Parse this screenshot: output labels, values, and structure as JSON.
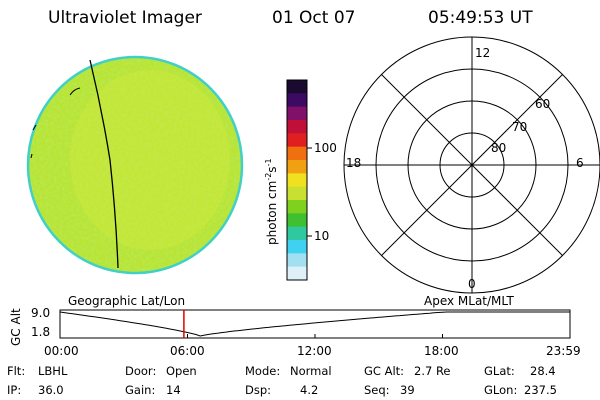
{
  "header": {
    "instrument": "Ultraviolet Imager",
    "date": "01 Oct 07",
    "time": "05:49:53 UT"
  },
  "colorbar": {
    "unit_base": "photon cm",
    "unit_exp1": "-2",
    "unit_mid": "s",
    "unit_exp2": "-1",
    "tick_100": "100",
    "tick_10": "10",
    "colors": [
      "#1a0a30",
      "#3c0a60",
      "#80106a",
      "#c0103a",
      "#e02020",
      "#f07010",
      "#f0a010",
      "#f0e020",
      "#c8e030",
      "#80d020",
      "#40c030",
      "#30c8a0",
      "#40d0f0",
      "#a0e0f0",
      "#e0f0f8"
    ]
  },
  "polar": {
    "mlt_12": "12",
    "mlt_18": "18",
    "mlt_6": "6",
    "mlt_0": "0",
    "lat_60": "60",
    "lat_70": "70",
    "lat_80": "80"
  },
  "orbit": {
    "left_label": "Geographic Lat/Lon",
    "right_label": "Apex MLat/MLT",
    "axis_title": "GC Alt",
    "y_top": "9.0",
    "y_bottom": "1.8",
    "x_ticks": [
      "00:00",
      "06:00",
      "12:00",
      "18:00",
      "23:59"
    ],
    "current_time_hours": 5.83
  },
  "status": {
    "filter_label": "Flt:",
    "filter_value": "LBHL",
    "ip_label": "IP:",
    "ip_value": "36.0",
    "door_label": "Door:",
    "door_value": "Open",
    "gain_label": "Gain:",
    "gain_value": "14",
    "mode_label": "Mode:",
    "mode_value": "Normal",
    "dsp_label": "Dsp:",
    "dsp_value": "4.2",
    "gcalt_label": "GC Alt:",
    "gcalt_value": "2.7 Re",
    "seq_label": "Seq:",
    "seq_value": "39",
    "glat_label": "GLat:",
    "glat_value": "28.4",
    "glon_label": "GLon:",
    "glon_value": "237.5"
  }
}
